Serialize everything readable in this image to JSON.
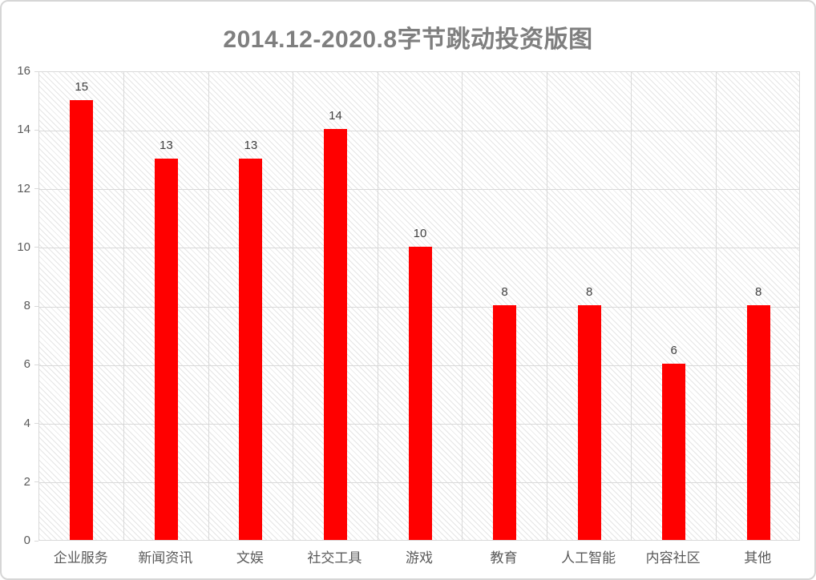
{
  "chart_data": {
    "type": "bar",
    "title": "2014.12-2020.8字节跳动投资版图",
    "categories": [
      "企业服务",
      "新闻资讯",
      "文娱",
      "社交工具",
      "游戏",
      "教育",
      "人工智能",
      "内容社区",
      "其他"
    ],
    "values": [
      15,
      13,
      13,
      14,
      10,
      8,
      8,
      6,
      8
    ],
    "xlabel": "",
    "ylabel": "",
    "ylim": [
      0,
      16
    ],
    "ytick_step": 2,
    "yticks": [
      0,
      2,
      4,
      6,
      8,
      10,
      12,
      14,
      16
    ],
    "grid": "both",
    "data_labels": true,
    "legend": "none",
    "colors": {
      "bar": "#ff0000",
      "title_text": "#7f7f7f",
      "axis_text": "#595959",
      "data_label_text": "#404040",
      "gridline": "#d9d9d9",
      "plot_hatch": "#e5e5e5",
      "card_border": "#d6d6d6",
      "background": "#ffffff"
    },
    "plot_background": "light-downward-diagonal-hatch"
  }
}
